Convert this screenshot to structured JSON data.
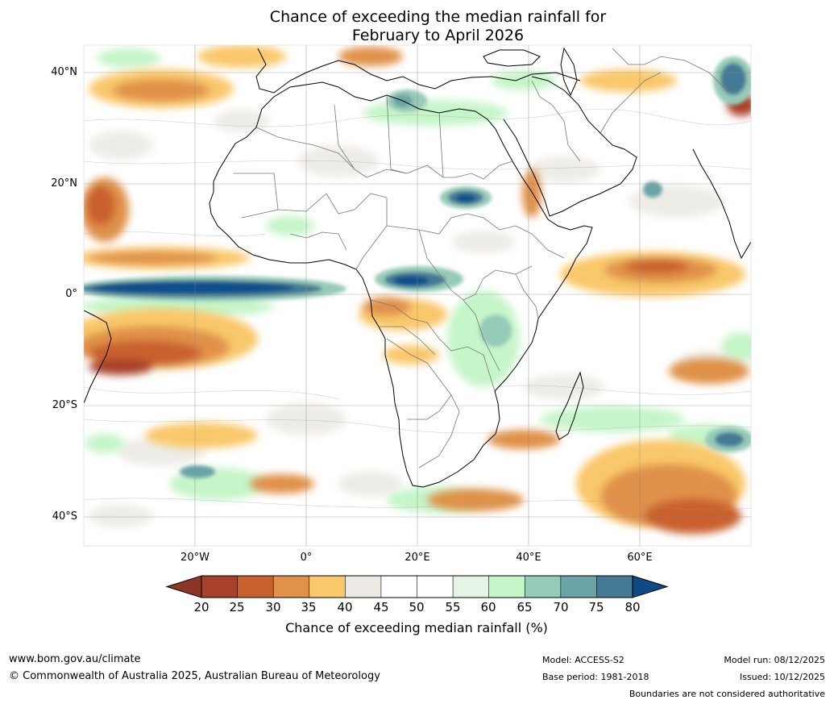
{
  "title": {
    "line1": "Chance of exceeding the median rainfall for",
    "line2": "February to April 2026"
  },
  "axes": {
    "latitudes": [
      "40°N",
      "20°N",
      "0°",
      "20°S",
      "40°S"
    ],
    "longitudes": [
      "20°W",
      "0°",
      "20°E",
      "40°E",
      "60°E"
    ]
  },
  "colorbar": {
    "ticks": [
      "20",
      "25",
      "30",
      "35",
      "40",
      "45",
      "50",
      "55",
      "60",
      "65",
      "70",
      "75",
      "80"
    ],
    "colors": [
      "#a8412a",
      "#c9602f",
      "#e0914a",
      "#f9c86a",
      "#edeae5",
      "#ffffff",
      "#ffffff",
      "#e6f4e6",
      "#c5f5c8",
      "#96cbb8",
      "#6aa4a6",
      "#447a96",
      "#11508a"
    ],
    "under_color": "#8e3626",
    "over_color": "#0e4a85",
    "label": "Chance of exceeding median rainfall (%)"
  },
  "footer": {
    "website": "www.bom.gov.au/climate",
    "copyright": "© Commonwealth of Australia 2025, Australian Bureau of Meteorology",
    "model": "Model: ACCESS-S2",
    "base_period": "Base period: 1981-2018",
    "model_run": "Model run: 08/12/2025",
    "issued": "Issued: 10/12/2025",
    "disclaimer": "Boundaries are not considered authoritative"
  }
}
